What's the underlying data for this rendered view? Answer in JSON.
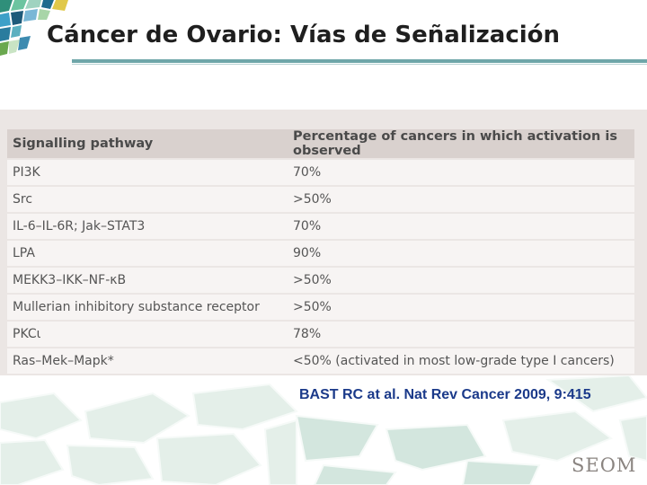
{
  "slide": {
    "title": "Cáncer de Ovario: Vías de Señalización",
    "citation": "BAST RC at al. Nat Rev Cancer 2009, 9:415",
    "logo_text": "SEOM"
  },
  "table": {
    "headers": [
      "Signalling pathway",
      "Percentage of cancers in which activation is observed"
    ],
    "rows": [
      [
        "PI3K",
        "70%"
      ],
      [
        "Src",
        ">50%"
      ],
      [
        "IL-6–IL-6R; Jak–STAT3",
        "70%"
      ],
      [
        "LPA",
        "90%"
      ],
      [
        "MEKK3–IKK–NF-κB",
        ">50%"
      ],
      [
        "Mullerian inhibitory substance receptor",
        ">50%"
      ],
      [
        "PKCι",
        "78%"
      ],
      [
        "Ras–Mek–Mapk*",
        "<50% (activated in most low-grade type I cancers)"
      ]
    ]
  },
  "colors": {
    "accent_rule": "#6fa6a9",
    "citation": "#1b3a8a",
    "table_header_bg": "#d9d1ce"
  },
  "icons": [
    "mosaic-logo-icon",
    "mosaic-footer-art"
  ]
}
